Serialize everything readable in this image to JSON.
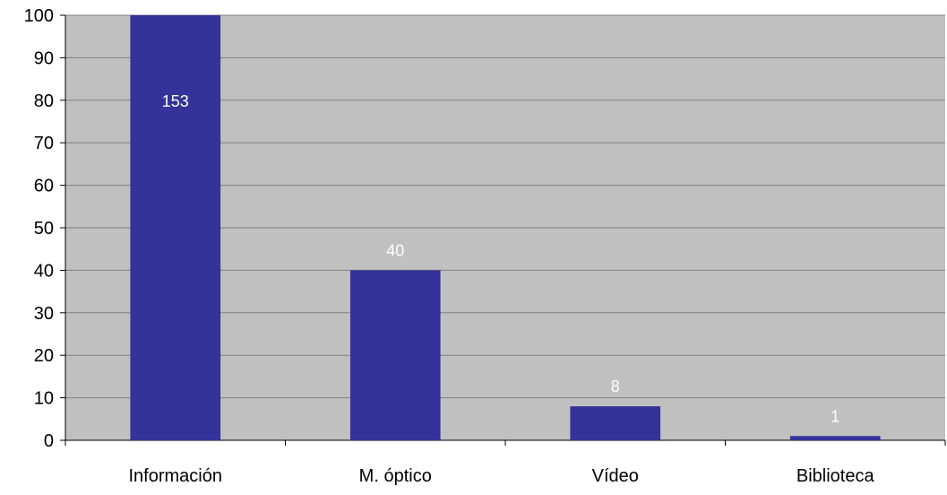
{
  "chart_data": {
    "type": "bar",
    "categories": [
      "Información",
      "M. óptico",
      "Vídeo",
      "Biblioteca"
    ],
    "values": [
      153,
      40,
      8,
      1
    ],
    "data_labels": [
      "153",
      "40",
      "8",
      "1"
    ],
    "ylim": [
      0,
      100
    ],
    "yticks": [
      0,
      10,
      20,
      30,
      40,
      50,
      60,
      70,
      80,
      90,
      100
    ],
    "grid": true,
    "legend": "none",
    "colors": {
      "bar": "#333399",
      "plot_background": "#c0c0c0",
      "gridline": "#808080",
      "data_label": "#ffffff"
    }
  }
}
